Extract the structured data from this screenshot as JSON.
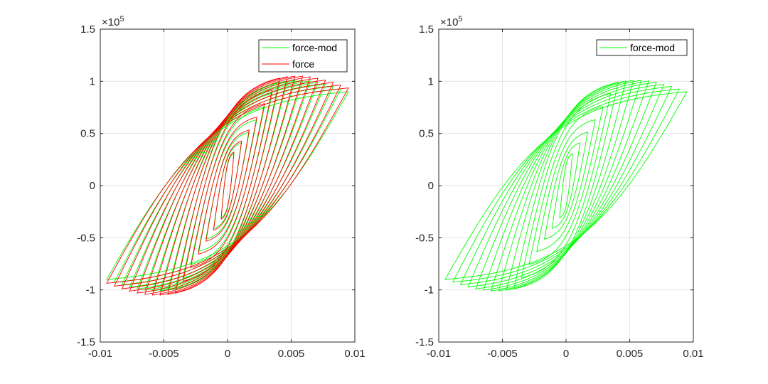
{
  "colors": {
    "green": "#00ff00",
    "red": "#ff0000",
    "grid": "#e3e3e3",
    "axis": "#262626",
    "background": "#ffffff"
  },
  "chart_data": [
    {
      "type": "line",
      "title": "",
      "xlabel": "",
      "ylabel": "",
      "xlim": [
        -0.01,
        0.01
      ],
      "ylim": [
        -150000,
        150000
      ],
      "xticks": [
        -0.01,
        -0.005,
        0,
        0.005,
        0.01
      ],
      "xtick_labels": [
        "-0.01",
        "-0.005",
        "0",
        "0.005",
        "0.01"
      ],
      "yticks": [
        -150000,
        -100000,
        -50000,
        0,
        50000,
        100000,
        150000
      ],
      "ytick_labels": [
        "-1.5",
        "-1",
        "-0.5",
        "0",
        "0.5",
        "1",
        "1.5"
      ],
      "y_exponent_base": "×10",
      "y_exponent_power": "5",
      "grid": true,
      "legend_position": "top-right",
      "loops": {
        "count": 16,
        "amplitude_start": 0.0095,
        "amplitude_end": 0.0005,
        "peak_force_at_max_amplitude": 90000,
        "max_peak_force": 101000
      },
      "series": [
        {
          "name": "force-mod",
          "color": "#00ff00"
        },
        {
          "name": "force",
          "color": "#ff0000"
        }
      ]
    },
    {
      "type": "line",
      "title": "",
      "xlabel": "",
      "ylabel": "",
      "xlim": [
        -0.01,
        0.01
      ],
      "ylim": [
        -150000,
        150000
      ],
      "xticks": [
        -0.01,
        -0.005,
        0,
        0.005,
        0.01
      ],
      "xtick_labels": [
        "-0.01",
        "-0.005",
        "0",
        "0.005",
        "0.01"
      ],
      "yticks": [
        -150000,
        -100000,
        -50000,
        0,
        50000,
        100000,
        150000
      ],
      "ytick_labels": [
        "-1.5",
        "-1",
        "-0.5",
        "0",
        "0.5",
        "1",
        "1.5"
      ],
      "y_exponent_base": "×10",
      "y_exponent_power": "5",
      "grid": true,
      "legend_position": "top-right",
      "loops": {
        "count": 16,
        "amplitude_start": 0.0095,
        "amplitude_end": 0.0005,
        "peak_force_at_max_amplitude": 90000,
        "max_peak_force": 101000
      },
      "series": [
        {
          "name": "force-mod",
          "color": "#00ff00"
        }
      ]
    }
  ]
}
